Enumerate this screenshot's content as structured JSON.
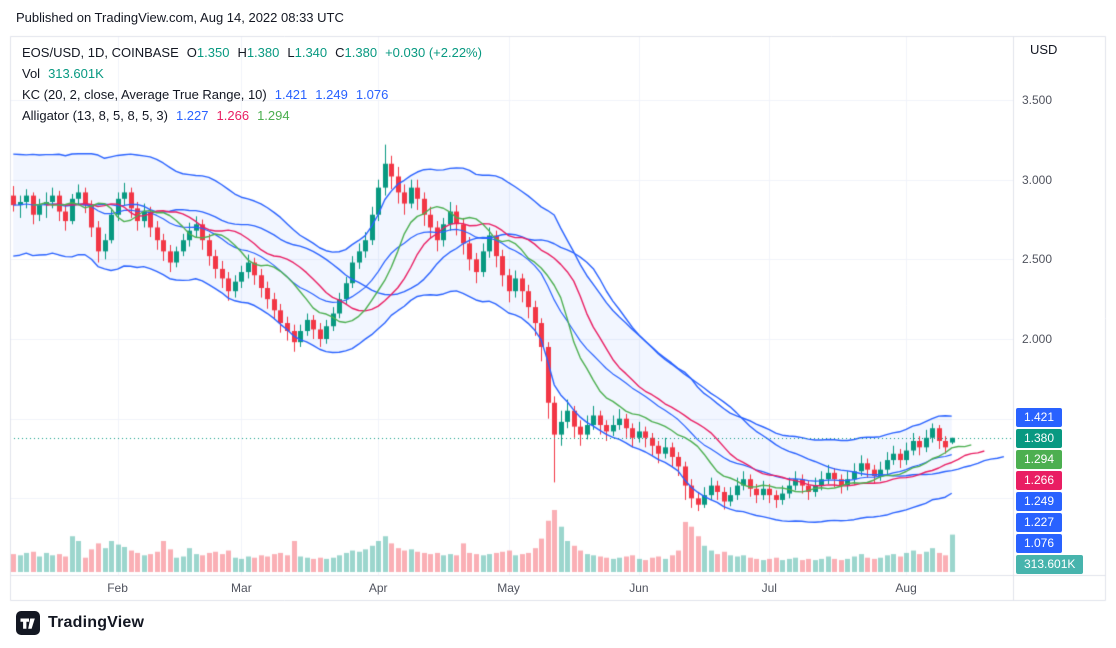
{
  "header": {
    "published": "Published on TradingView.com, Aug 14, 2022 08:33 UTC"
  },
  "legend": {
    "symbol": "EOS/USD, 1D, COINBASE",
    "ohlc": [
      {
        "label": "O",
        "value": "1.350"
      },
      {
        "label": "H",
        "value": "1.380"
      },
      {
        "label": "L",
        "value": "1.340"
      },
      {
        "label": "C",
        "value": "1.380"
      }
    ],
    "change": "+0.030 (+2.22%)",
    "value_color": "#089981",
    "vol_label": "Vol",
    "vol_value": "313.601K",
    "kc_label": "KC (20, 2, close, Average True Range, 10)",
    "kc_color": "#2962ff",
    "kc_values": [
      "1.421",
      "1.249",
      "1.076"
    ],
    "alligator_label": "Alligator (13, 8, 5, 8, 5, 3)",
    "alligator_values": [
      {
        "text": "1.227",
        "color": "#2962ff"
      },
      {
        "text": "1.266",
        "color": "#e91e63"
      },
      {
        "text": "1.294",
        "color": "#4caf50"
      }
    ]
  },
  "axis": {
    "currency": "USD",
    "price_ticks": [
      {
        "label": "3.500",
        "value": 3.5
      },
      {
        "label": "3.000",
        "value": 3.0
      },
      {
        "label": "2.500",
        "value": 2.5
      },
      {
        "label": "2.000",
        "value": 2.0
      }
    ],
    "price_labels": [
      {
        "text": "1.421",
        "bg": "#2962ff"
      },
      {
        "text": "1.380",
        "bg": "#089981"
      },
      {
        "text": "1.294",
        "bg": "#4caf50"
      },
      {
        "text": "1.266",
        "bg": "#e91e63"
      },
      {
        "text": "1.249",
        "bg": "#2962ff"
      },
      {
        "text": "1.227",
        "bg": "#2962ff"
      },
      {
        "text": "1.076",
        "bg": "#2962ff"
      },
      {
        "text": "313.601K",
        "bg": "#47b4ad"
      }
    ]
  },
  "footer": {
    "brand": "TradingView"
  },
  "chart_data": {
    "type": "candlestick",
    "title": "EOS/USD, 1D, COINBASE",
    "symbol": "EOS/USD",
    "interval": "1D",
    "exchange": "COINBASE",
    "last": {
      "open": 1.35,
      "high": 1.38,
      "low": 1.34,
      "close": 1.38,
      "change_abs": 0.03,
      "change_pct": 2.22
    },
    "current_price": 1.38,
    "volume_last": "313.601K",
    "y_axis": {
      "min": 0.85,
      "max": 3.75,
      "grid": [
        3.5,
        3.0,
        2.5,
        2.0,
        1.5,
        1.0
      ]
    },
    "x_ticks": [
      {
        "label": "Feb",
        "idx": 16
      },
      {
        "label": "Mar",
        "idx": 35
      },
      {
        "label": "Apr",
        "idx": 56
      },
      {
        "label": "May",
        "idx": 76
      },
      {
        "label": "Jun",
        "idx": 96
      },
      {
        "label": "Jul",
        "idx": 116
      },
      {
        "label": "Aug",
        "idx": 137
      }
    ],
    "indicators": {
      "kc": {
        "params": "20, 2, close, Average True Range, 10",
        "upper": 1.421,
        "middle": 1.249,
        "lower": 1.076,
        "color": "#2962ff"
      },
      "alligator": {
        "params": "13, 8, 5, 8, 5, 3",
        "jaw": 1.227,
        "teeth": 1.266,
        "lips": 1.294,
        "colors": {
          "jaw": "#2962ff",
          "teeth": "#e91e63",
          "lips": "#4caf50"
        }
      }
    },
    "colors": {
      "up": "#089981",
      "down": "#f23645",
      "vol_up": "rgba(8,153,129,0.4)",
      "vol_down": "rgba(242,54,69,0.4)",
      "kc_line": "#2962ff",
      "kc_fill": "rgba(41,98,255,0.06)",
      "grid": "#f0f3fa",
      "border": "#e0e3eb"
    },
    "candles": [
      [
        2.9,
        2.96,
        2.8,
        2.84,
        150
      ],
      [
        2.84,
        2.9,
        2.76,
        2.86,
        140
      ],
      [
        2.86,
        2.94,
        2.82,
        2.9,
        160
      ],
      [
        2.9,
        2.92,
        2.72,
        2.78,
        170
      ],
      [
        2.78,
        2.88,
        2.74,
        2.84,
        130
      ],
      [
        2.84,
        2.92,
        2.76,
        2.86,
        160
      ],
      [
        2.86,
        2.95,
        2.82,
        2.9,
        140
      ],
      [
        2.9,
        2.93,
        2.74,
        2.8,
        150
      ],
      [
        2.8,
        2.84,
        2.68,
        2.74,
        130
      ],
      [
        2.74,
        2.91,
        2.72,
        2.88,
        300
      ],
      [
        2.88,
        2.97,
        2.84,
        2.92,
        260
      ],
      [
        2.92,
        2.95,
        2.79,
        2.84,
        120
      ],
      [
        2.84,
        2.87,
        2.64,
        2.7,
        190
      ],
      [
        2.7,
        2.74,
        2.48,
        2.55,
        240
      ],
      [
        2.55,
        2.66,
        2.5,
        2.62,
        200
      ],
      [
        2.62,
        2.82,
        2.6,
        2.78,
        260
      ],
      [
        2.78,
        2.92,
        2.74,
        2.88,
        230
      ],
      [
        2.88,
        2.98,
        2.84,
        2.92,
        210
      ],
      [
        2.92,
        2.95,
        2.76,
        2.82,
        180
      ],
      [
        2.82,
        2.86,
        2.68,
        2.74,
        160
      ],
      [
        2.74,
        2.85,
        2.7,
        2.8,
        140
      ],
      [
        2.8,
        2.83,
        2.64,
        2.7,
        150
      ],
      [
        2.7,
        2.74,
        2.56,
        2.62,
        170
      ],
      [
        2.62,
        2.66,
        2.49,
        2.55,
        260
      ],
      [
        2.55,
        2.59,
        2.42,
        2.48,
        190
      ],
      [
        2.48,
        2.58,
        2.45,
        2.55,
        120
      ],
      [
        2.55,
        2.66,
        2.52,
        2.62,
        130
      ],
      [
        2.62,
        2.73,
        2.58,
        2.68,
        200
      ],
      [
        2.68,
        2.77,
        2.64,
        2.72,
        150
      ],
      [
        2.72,
        2.75,
        2.56,
        2.62,
        140
      ],
      [
        2.62,
        2.66,
        2.46,
        2.52,
        160
      ],
      [
        2.52,
        2.56,
        2.38,
        2.44,
        170
      ],
      [
        2.44,
        2.49,
        2.32,
        2.38,
        150
      ],
      [
        2.38,
        2.42,
        2.24,
        2.3,
        180
      ],
      [
        2.3,
        2.4,
        2.26,
        2.36,
        120
      ],
      [
        2.36,
        2.46,
        2.32,
        2.42,
        110
      ],
      [
        2.42,
        2.53,
        2.38,
        2.48,
        130
      ],
      [
        2.48,
        2.51,
        2.34,
        2.4,
        120
      ],
      [
        2.4,
        2.44,
        2.26,
        2.32,
        140
      ],
      [
        2.32,
        2.36,
        2.19,
        2.25,
        130
      ],
      [
        2.25,
        2.29,
        2.12,
        2.18,
        150
      ],
      [
        2.18,
        2.22,
        2.04,
        2.1,
        160
      ],
      [
        2.1,
        2.14,
        1.99,
        2.05,
        140
      ],
      [
        2.05,
        2.09,
        1.92,
        1.98,
        260
      ],
      [
        1.98,
        2.09,
        1.95,
        2.05,
        130
      ],
      [
        2.05,
        2.16,
        2.02,
        2.12,
        120
      ],
      [
        2.12,
        2.15,
        2.0,
        2.06,
        110
      ],
      [
        2.06,
        2.1,
        1.95,
        2.0,
        120
      ],
      [
        2.0,
        2.12,
        1.97,
        2.08,
        110
      ],
      [
        2.08,
        2.2,
        2.05,
        2.16,
        120
      ],
      [
        2.16,
        2.29,
        2.13,
        2.25,
        140
      ],
      [
        2.25,
        2.39,
        2.22,
        2.35,
        160
      ],
      [
        2.35,
        2.52,
        2.32,
        2.48,
        180
      ],
      [
        2.48,
        2.6,
        2.44,
        2.55,
        170
      ],
      [
        2.55,
        2.67,
        2.51,
        2.62,
        190
      ],
      [
        2.62,
        2.83,
        2.59,
        2.78,
        220
      ],
      [
        2.78,
        3.0,
        2.74,
        2.95,
        260
      ],
      [
        2.95,
        3.22,
        2.9,
        3.1,
        300
      ],
      [
        3.1,
        3.15,
        2.94,
        3.02,
        240
      ],
      [
        3.02,
        3.08,
        2.85,
        2.92,
        200
      ],
      [
        2.92,
        2.97,
        2.78,
        2.85,
        180
      ],
      [
        2.85,
        3.0,
        2.82,
        2.95,
        190
      ],
      [
        2.95,
        3.0,
        2.81,
        2.88,
        170
      ],
      [
        2.88,
        2.92,
        2.71,
        2.78,
        160
      ],
      [
        2.78,
        2.83,
        2.63,
        2.7,
        150
      ],
      [
        2.7,
        2.74,
        2.55,
        2.62,
        160
      ],
      [
        2.62,
        2.76,
        2.58,
        2.72,
        140
      ],
      [
        2.72,
        2.86,
        2.68,
        2.8,
        150
      ],
      [
        2.8,
        2.84,
        2.65,
        2.72,
        140
      ],
      [
        2.72,
        2.76,
        2.53,
        2.6,
        240
      ],
      [
        2.6,
        2.64,
        2.43,
        2.5,
        160
      ],
      [
        2.5,
        2.54,
        2.35,
        2.42,
        150
      ],
      [
        2.42,
        2.6,
        2.39,
        2.55,
        140
      ],
      [
        2.55,
        2.7,
        2.51,
        2.65,
        150
      ],
      [
        2.65,
        2.68,
        2.45,
        2.52,
        160
      ],
      [
        2.52,
        2.56,
        2.33,
        2.4,
        170
      ],
      [
        2.4,
        2.44,
        2.23,
        2.3,
        180
      ],
      [
        2.3,
        2.43,
        2.26,
        2.38,
        140
      ],
      [
        2.38,
        2.41,
        2.23,
        2.3,
        150
      ],
      [
        2.3,
        2.34,
        2.13,
        2.2,
        160
      ],
      [
        2.2,
        2.24,
        2.02,
        2.1,
        200
      ],
      [
        2.1,
        2.13,
        1.86,
        1.95,
        280
      ],
      [
        1.95,
        1.98,
        1.5,
        1.6,
        430
      ],
      [
        1.6,
        1.64,
        1.1,
        1.4,
        520
      ],
      [
        1.4,
        1.55,
        1.33,
        1.48,
        380
      ],
      [
        1.48,
        1.62,
        1.44,
        1.55,
        260
      ],
      [
        1.55,
        1.58,
        1.38,
        1.45,
        220
      ],
      [
        1.45,
        1.49,
        1.33,
        1.4,
        180
      ],
      [
        1.4,
        1.52,
        1.37,
        1.46,
        150
      ],
      [
        1.46,
        1.58,
        1.43,
        1.52,
        140
      ],
      [
        1.52,
        1.55,
        1.4,
        1.46,
        130
      ],
      [
        1.46,
        1.49,
        1.36,
        1.42,
        120
      ],
      [
        1.42,
        1.52,
        1.39,
        1.46,
        110
      ],
      [
        1.46,
        1.56,
        1.43,
        1.5,
        120
      ],
      [
        1.5,
        1.53,
        1.38,
        1.44,
        130
      ],
      [
        1.44,
        1.47,
        1.32,
        1.38,
        140
      ],
      [
        1.38,
        1.48,
        1.35,
        1.42,
        110
      ],
      [
        1.42,
        1.45,
        1.32,
        1.38,
        100
      ],
      [
        1.38,
        1.41,
        1.27,
        1.33,
        120
      ],
      [
        1.33,
        1.36,
        1.22,
        1.28,
        130
      ],
      [
        1.28,
        1.38,
        1.25,
        1.32,
        110
      ],
      [
        1.32,
        1.35,
        1.2,
        1.26,
        140
      ],
      [
        1.26,
        1.29,
        1.14,
        1.2,
        180
      ],
      [
        1.2,
        1.23,
        0.99,
        1.08,
        420
      ],
      [
        1.08,
        1.12,
        0.94,
        1.0,
        380
      ],
      [
        1.0,
        1.04,
        0.92,
        0.96,
        300
      ],
      [
        0.96,
        1.07,
        0.94,
        1.02,
        220
      ],
      [
        1.02,
        1.13,
        0.99,
        1.08,
        180
      ],
      [
        1.08,
        1.11,
        0.99,
        1.04,
        150
      ],
      [
        1.04,
        1.07,
        0.93,
        0.98,
        170
      ],
      [
        0.98,
        1.07,
        0.95,
        1.02,
        140
      ],
      [
        1.02,
        1.13,
        0.99,
        1.08,
        130
      ],
      [
        1.08,
        1.17,
        1.05,
        1.12,
        140
      ],
      [
        1.12,
        1.15,
        1.01,
        1.06,
        120
      ],
      [
        1.06,
        1.09,
        0.97,
        1.02,
        110
      ],
      [
        1.02,
        1.11,
        0.99,
        1.06,
        100
      ],
      [
        1.06,
        1.09,
        0.97,
        1.02,
        110
      ],
      [
        1.02,
        1.05,
        0.94,
        0.99,
        120
      ],
      [
        0.99,
        1.08,
        0.96,
        1.03,
        100
      ],
      [
        1.03,
        1.13,
        1.0,
        1.08,
        110
      ],
      [
        1.08,
        1.17,
        1.05,
        1.12,
        120
      ],
      [
        1.12,
        1.15,
        1.03,
        1.08,
        100
      ],
      [
        1.08,
        1.11,
        0.99,
        1.04,
        110
      ],
      [
        1.04,
        1.13,
        1.01,
        1.08,
        100
      ],
      [
        1.08,
        1.17,
        1.05,
        1.12,
        110
      ],
      [
        1.12,
        1.21,
        1.09,
        1.16,
        130
      ],
      [
        1.16,
        1.19,
        1.07,
        1.12,
        110
      ],
      [
        1.12,
        1.15,
        1.03,
        1.08,
        100
      ],
      [
        1.08,
        1.17,
        1.05,
        1.12,
        110
      ],
      [
        1.12,
        1.22,
        1.09,
        1.17,
        130
      ],
      [
        1.17,
        1.27,
        1.14,
        1.22,
        150
      ],
      [
        1.22,
        1.25,
        1.13,
        1.18,
        120
      ],
      [
        1.18,
        1.21,
        1.09,
        1.14,
        110
      ],
      [
        1.14,
        1.23,
        1.11,
        1.18,
        120
      ],
      [
        1.18,
        1.29,
        1.15,
        1.24,
        140
      ],
      [
        1.24,
        1.33,
        1.21,
        1.28,
        150
      ],
      [
        1.28,
        1.31,
        1.19,
        1.24,
        130
      ],
      [
        1.24,
        1.35,
        1.21,
        1.3,
        160
      ],
      [
        1.3,
        1.41,
        1.27,
        1.36,
        180
      ],
      [
        1.36,
        1.39,
        1.27,
        1.32,
        150
      ],
      [
        1.32,
        1.43,
        1.29,
        1.38,
        170
      ],
      [
        1.38,
        1.47,
        1.35,
        1.44,
        200
      ],
      [
        1.44,
        1.46,
        1.31,
        1.36,
        160
      ],
      [
        1.36,
        1.39,
        1.28,
        1.32,
        140
      ],
      [
        1.35,
        1.38,
        1.34,
        1.38,
        313.601
      ]
    ]
  }
}
